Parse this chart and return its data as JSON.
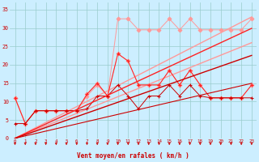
{
  "x": [
    0,
    1,
    2,
    3,
    4,
    5,
    6,
    7,
    8,
    9,
    10,
    11,
    12,
    13,
    14,
    15,
    16,
    17,
    18,
    19,
    20,
    21,
    22,
    23
  ],
  "line_pink_upper": [
    11,
    4,
    7.5,
    7.5,
    7.5,
    7.5,
    7.5,
    11.5,
    14.5,
    11.5,
    32.5,
    32.5,
    29.5,
    29.5,
    29.5,
    32.5,
    29.5,
    32.5,
    29.5,
    29.5,
    29.5,
    29.5,
    29.5,
    32.5
  ],
  "line_pink_lower": [
    11,
    4,
    7.5,
    7.5,
    7.5,
    7.5,
    7.5,
    12,
    15,
    11.5,
    23,
    21,
    14.5,
    14.5,
    14.5,
    18.5,
    14.5,
    18.5,
    14.5,
    11,
    11,
    11,
    11,
    14.5
  ],
  "line_red_upper": [
    11,
    4,
    7.5,
    7.5,
    7.5,
    7.5,
    7.5,
    12,
    15,
    11.5,
    23,
    21,
    14.5,
    14.5,
    14.5,
    18.5,
    14.5,
    18.5,
    14.5,
    11,
    11,
    11,
    11,
    14.5
  ],
  "line_red_lower": [
    4,
    4,
    7.5,
    7.5,
    7.5,
    7.5,
    7.5,
    8,
    11.5,
    11.5,
    14.5,
    11.5,
    8,
    11.5,
    11.5,
    14.5,
    11.5,
    14.5,
    11.5,
    11,
    11,
    11,
    11,
    11
  ],
  "straight_pink1": [
    0,
    1.43,
    2.87,
    4.3,
    5.74,
    7.17,
    8.61,
    10.04,
    11.48,
    12.91,
    14.35,
    15.78,
    17.22,
    18.65,
    20.09,
    21.52,
    22.96,
    24.39,
    25.83,
    27.26,
    28.7,
    30.13,
    31.57,
    33.0
  ],
  "straight_pink2": [
    0,
    1.13,
    2.26,
    3.39,
    4.52,
    5.65,
    6.78,
    7.91,
    9.04,
    10.17,
    11.3,
    12.43,
    13.56,
    14.69,
    15.82,
    16.95,
    18.08,
    19.21,
    20.34,
    21.47,
    22.6,
    23.73,
    24.86,
    26.0
  ],
  "straight_red1": [
    0,
    1.3,
    2.6,
    3.9,
    5.2,
    6.5,
    7.8,
    9.1,
    10.4,
    11.7,
    13.0,
    14.3,
    15.6,
    16.9,
    18.2,
    19.5,
    20.8,
    22.1,
    23.4,
    24.7,
    26.0,
    27.3,
    28.6,
    29.9
  ],
  "straight_red2": [
    0,
    0.98,
    1.96,
    2.94,
    3.92,
    4.9,
    5.88,
    6.86,
    7.84,
    8.82,
    9.8,
    10.78,
    11.76,
    12.74,
    13.72,
    14.7,
    15.68,
    16.66,
    17.64,
    18.62,
    19.6,
    20.58,
    21.56,
    22.54
  ],
  "straight_darkred": [
    0,
    0.65,
    1.3,
    1.95,
    2.6,
    3.25,
    3.9,
    4.55,
    5.2,
    5.85,
    6.5,
    7.15,
    7.8,
    8.45,
    9.1,
    9.75,
    10.4,
    11.05,
    11.7,
    12.35,
    13.0,
    13.65,
    14.3,
    14.95
  ],
  "bg_color": "#cceeff",
  "grid_color": "#99cccc",
  "line_pink": "#ff9999",
  "line_red": "#ff2222",
  "line_darkred": "#cc0000",
  "xlabel": "Vent moyen/en rafales ( km/h )",
  "xlabel_color": "#cc0000",
  "tick_color": "#cc0000",
  "ylim": [
    0,
    37
  ],
  "xlim": [
    -0.5,
    23.5
  ],
  "yticks": [
    0,
    5,
    10,
    15,
    20,
    25,
    30,
    35
  ]
}
